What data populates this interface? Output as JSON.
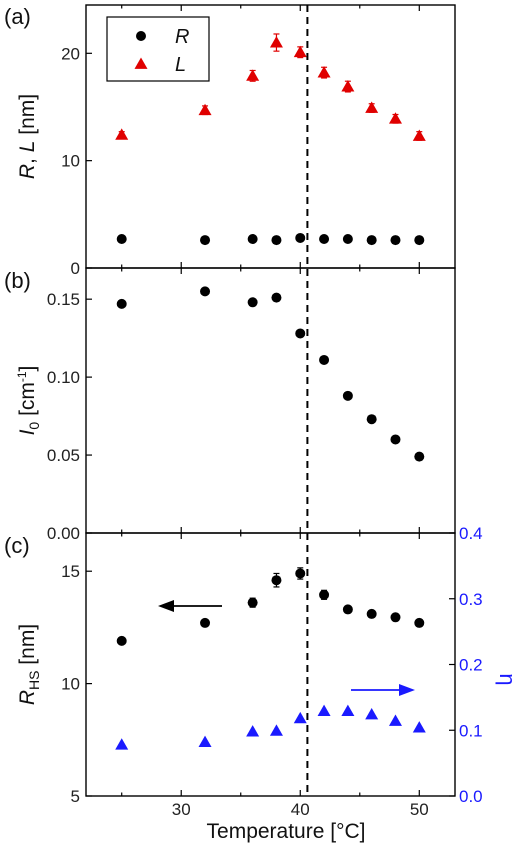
{
  "colors": {
    "black": "#000000",
    "red": "#e00000",
    "blue": "#1a1aff",
    "axis": "#000000"
  },
  "xlabel": "Temperature [°C]",
  "x_ticks": [
    "30",
    "40",
    "50"
  ],
  "vline_x": 40.6,
  "chart_data": [
    {
      "panel": "(a)",
      "type": "scatter",
      "ylabel_parts": [
        "R",
        ", ",
        "L",
        " [nm]"
      ],
      "xlim": [
        22,
        53
      ],
      "ylim": [
        0,
        24.5
      ],
      "y_ticks": [
        "0",
        "10",
        "20"
      ],
      "legend": {
        "placement": "top-left",
        "entries": [
          "R",
          "L"
        ]
      },
      "series": [
        {
          "name": "R",
          "marker": "circle",
          "color": "#000000",
          "x": [
            25,
            32,
            36,
            38,
            40,
            42,
            44,
            46,
            48,
            50
          ],
          "y": [
            2.7,
            2.6,
            2.7,
            2.6,
            2.8,
            2.7,
            2.7,
            2.6,
            2.6,
            2.6
          ]
        },
        {
          "name": "L",
          "marker": "triangle",
          "color": "#e00000",
          "x": [
            25,
            32,
            36,
            38,
            40,
            42,
            44,
            46,
            48,
            50
          ],
          "y": [
            12.4,
            14.7,
            17.9,
            21.0,
            20.1,
            18.2,
            16.9,
            14.9,
            13.9,
            12.3
          ],
          "err": [
            0.3,
            0.4,
            0.5,
            0.8,
            0.5,
            0.5,
            0.5,
            0.4,
            0.4,
            0.4
          ]
        }
      ]
    },
    {
      "panel": "(b)",
      "type": "scatter",
      "ylabel_parts": [
        "I",
        "0",
        " [cm",
        "-1",
        "]"
      ],
      "xlim": [
        22,
        53
      ],
      "ylim": [
        0,
        0.17
      ],
      "y_ticks": [
        "0.00",
        "0.05",
        "0.10",
        "0.15"
      ],
      "series": [
        {
          "marker": "circle",
          "color": "#000000",
          "x": [
            25,
            32,
            36,
            38,
            40,
            42,
            44,
            46,
            48,
            50
          ],
          "y": [
            0.147,
            0.155,
            0.148,
            0.151,
            0.128,
            0.111,
            0.088,
            0.073,
            0.06,
            0.049
          ]
        }
      ]
    },
    {
      "panel": "(c)",
      "type": "scatter",
      "ylabel_parts": [
        "R",
        "HS",
        " [nm]"
      ],
      "y2label": "η",
      "xlim": [
        22,
        53
      ],
      "ylim": [
        5,
        16.7
      ],
      "y_ticks": [
        "5",
        "10",
        "15"
      ],
      "y2lim": [
        0,
        0.4
      ],
      "y2_ticks": [
        "0.0",
        "0.1",
        "0.2",
        "0.3",
        "0.4"
      ],
      "series": [
        {
          "name": "R_HS",
          "marker": "circle",
          "color": "#000000",
          "axis": "left",
          "x": [
            25,
            32,
            36,
            38,
            40,
            42,
            44,
            46,
            48,
            50
          ],
          "y": [
            11.9,
            12.7,
            13.6,
            14.6,
            14.9,
            13.95,
            13.3,
            13.1,
            12.95,
            12.7
          ],
          "err": [
            0.1,
            0.1,
            0.2,
            0.3,
            0.25,
            0.2,
            0.15,
            0.15,
            0.15,
            0.15
          ]
        },
        {
          "name": "eta",
          "marker": "triangle",
          "color": "#1a1aff",
          "axis": "right",
          "x": [
            25,
            32,
            36,
            38,
            40,
            42,
            44,
            46,
            48,
            50
          ],
          "y": [
            0.078,
            0.082,
            0.098,
            0.099,
            0.118,
            0.129,
            0.129,
            0.124,
            0.114,
            0.104
          ]
        }
      ],
      "arrows": [
        {
          "direction": "left",
          "target": "left-axis",
          "color": "#000000"
        },
        {
          "direction": "right",
          "target": "right-axis",
          "color": "#1a1aff"
        }
      ]
    }
  ]
}
